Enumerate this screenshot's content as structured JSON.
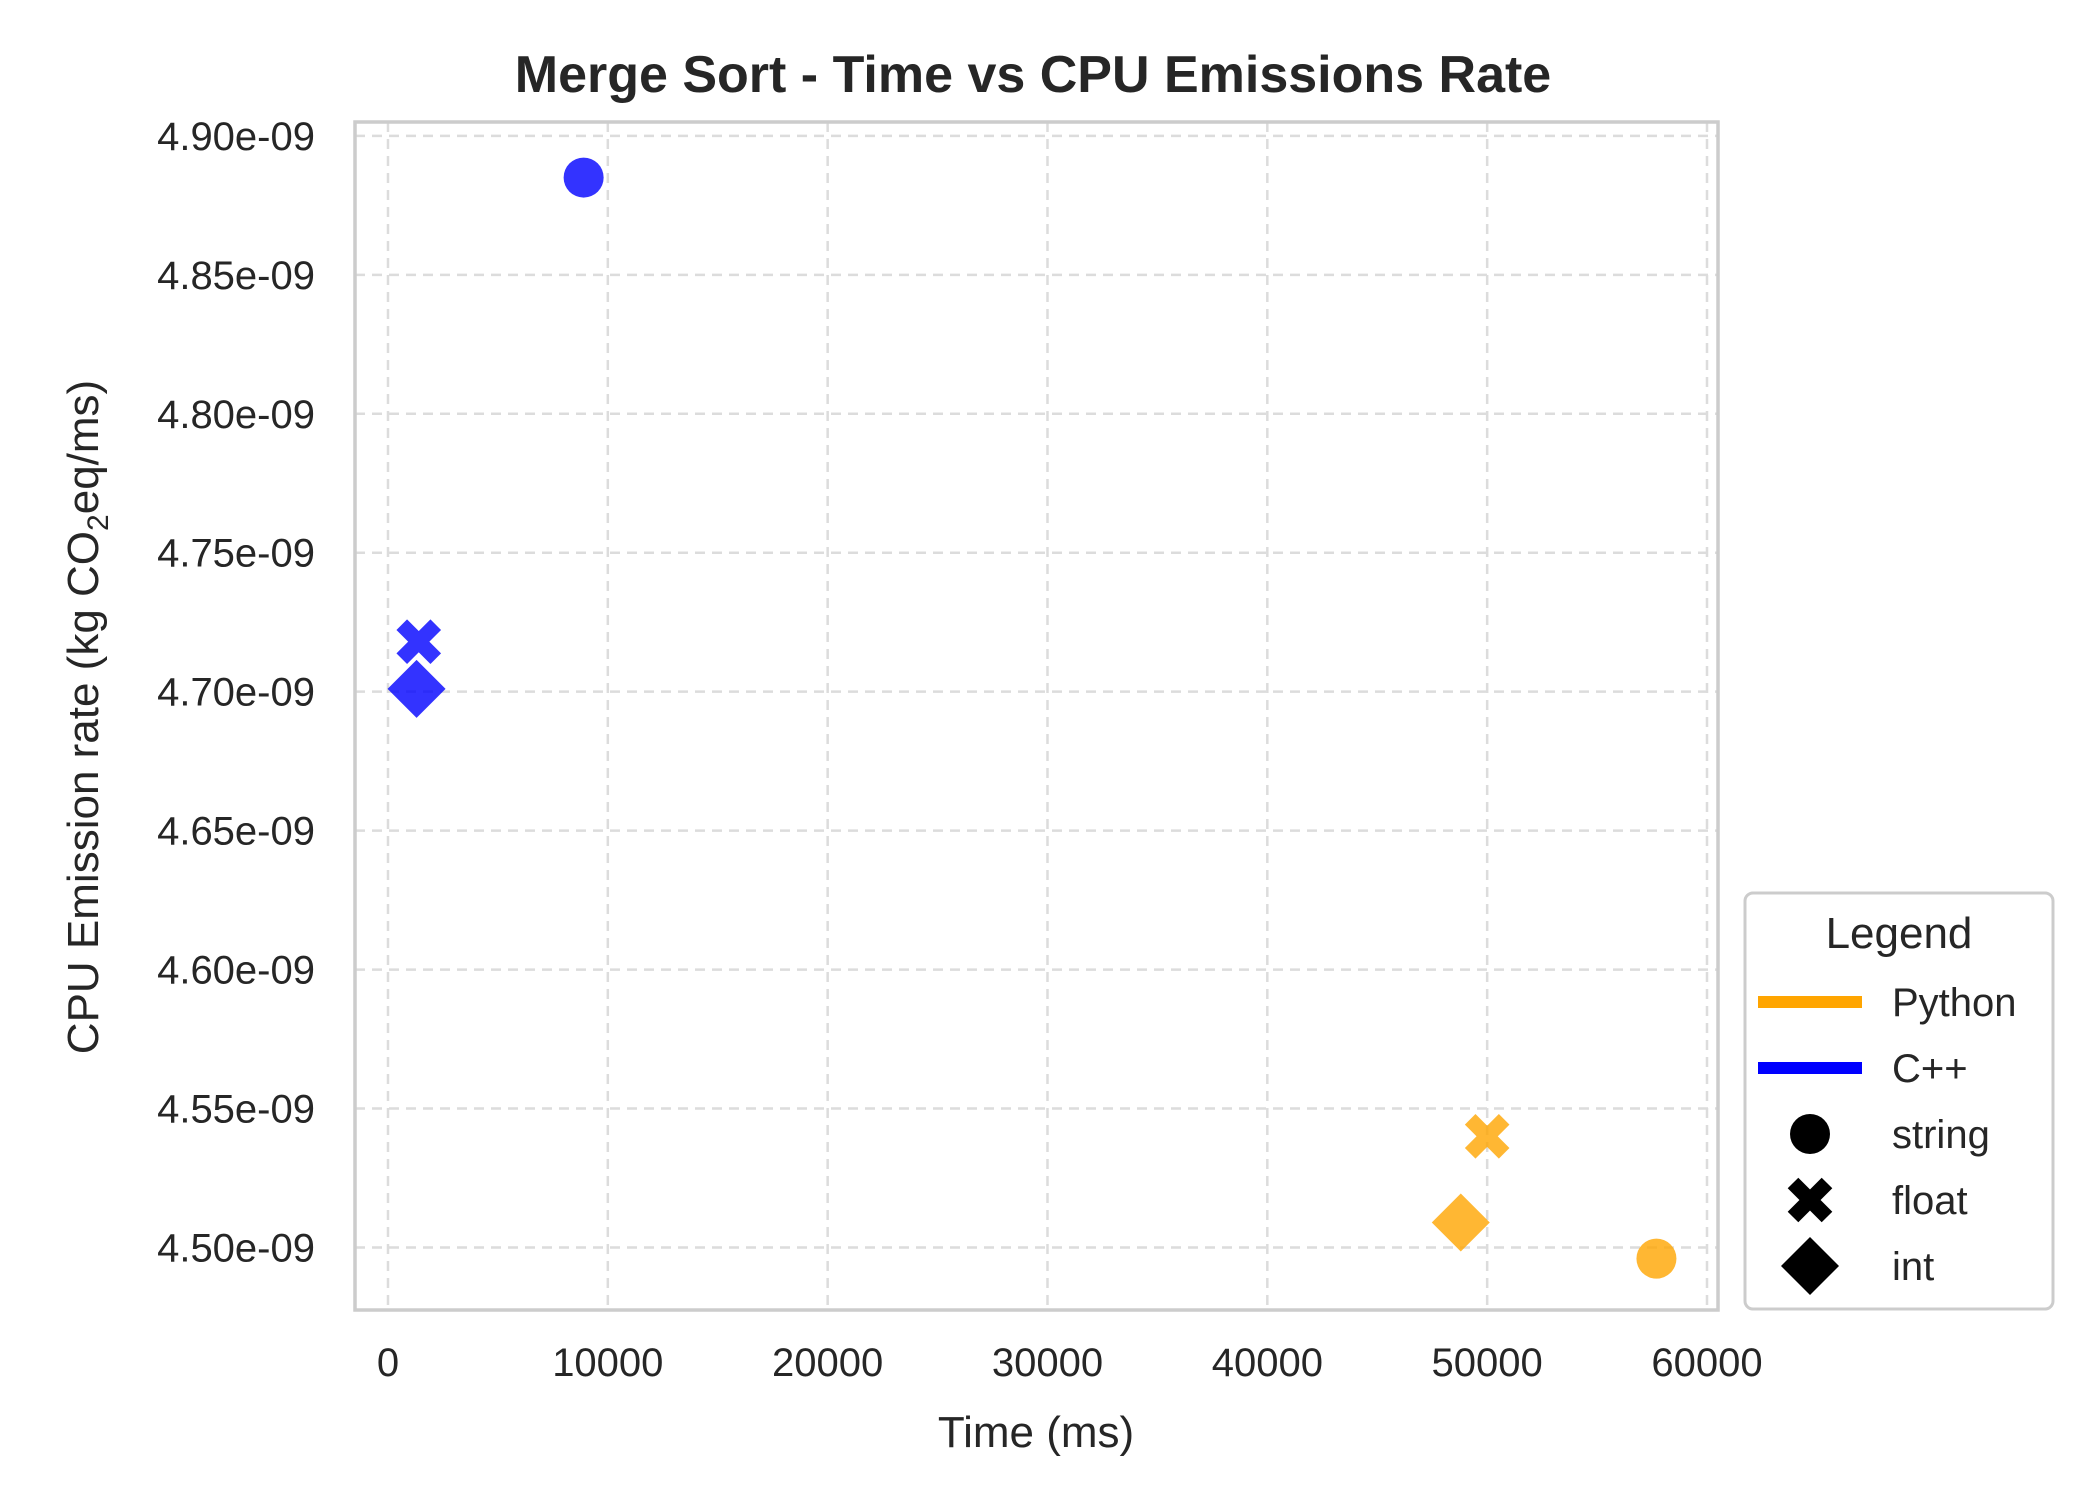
{
  "chart_data": {
    "type": "scatter",
    "title": "Merge Sort - Time vs CPU Emissions Rate",
    "xlabel": "Time (ms)",
    "ylabel": {
      "before": "CPU Emission rate (kg CO",
      "sub": "2",
      "after": "eq/ms)"
    },
    "xlim": [
      -1500,
      60500
    ],
    "ylim": [
      4.4775e-09,
      4.905e-09
    ],
    "xticks": [
      0,
      10000,
      20000,
      30000,
      40000,
      50000,
      60000
    ],
    "xtick_labels": [
      "0",
      "10000",
      "20000",
      "30000",
      "40000",
      "50000",
      "60000"
    ],
    "yticks": [
      4.5e-09,
      4.55e-09,
      4.6e-09,
      4.65e-09,
      4.7e-09,
      4.75e-09,
      4.8e-09,
      4.85e-09,
      4.9e-09
    ],
    "ytick_labels": [
      "4.50e-09",
      "4.55e-09",
      "4.60e-09",
      "4.65e-09",
      "4.70e-09",
      "4.75e-09",
      "4.80e-09",
      "4.85e-09",
      "4.90e-09"
    ],
    "grid": true,
    "legend_placement": "outside-right-bottom",
    "series": [
      {
        "name": "Python",
        "color": "#FFA500",
        "points": [
          {
            "type": "string",
            "x": 57700,
            "y": 4.496e-09
          },
          {
            "type": "float",
            "x": 50000,
            "y": 4.54e-09
          },
          {
            "type": "int",
            "x": 48800,
            "y": 4.509e-09
          }
        ]
      },
      {
        "name": "C++",
        "color": "#0000FF",
        "points": [
          {
            "type": "string",
            "x": 8900,
            "y": 4.885e-09
          },
          {
            "type": "float",
            "x": 1400,
            "y": 4.718e-09
          },
          {
            "type": "int",
            "x": 1300,
            "y": 4.701e-09
          }
        ]
      }
    ],
    "legend": {
      "title": "Legend",
      "entries": [
        {
          "label": "Python",
          "kind": "line",
          "color": "#FFA500"
        },
        {
          "label": "C++",
          "kind": "line",
          "color": "#0000FF"
        },
        {
          "label": "string",
          "kind": "marker",
          "marker": "circle"
        },
        {
          "label": "float",
          "kind": "marker",
          "marker": "x"
        },
        {
          "label": "int",
          "kind": "marker",
          "marker": "diamond"
        }
      ]
    }
  }
}
